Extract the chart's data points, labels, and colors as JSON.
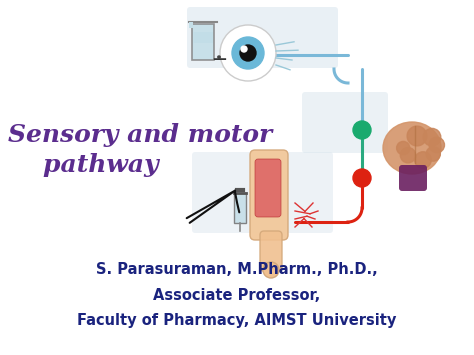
{
  "bg_color": "#ffffff",
  "title_line1": "Sensory and motor",
  "title_line2": "    pathway",
  "title_color": "#5b2d8e",
  "title_fontsize": 18,
  "title_style": "italic",
  "title_weight": "bold",
  "line1_text": "S. Parasuraman, M.Pharm., Ph.D.,",
  "line2_text": "Associate Professor,",
  "line3_text": "Faculty of Pharmacy, AIMST University",
  "footer_color": "#1a237e",
  "footer_fontsize": 10.5,
  "node_green": "#1aaa6e",
  "node_red": "#dd2211",
  "line_blue": "#7ab8d8",
  "line_teal": "#2aaa80",
  "line_red": "#dd2211"
}
